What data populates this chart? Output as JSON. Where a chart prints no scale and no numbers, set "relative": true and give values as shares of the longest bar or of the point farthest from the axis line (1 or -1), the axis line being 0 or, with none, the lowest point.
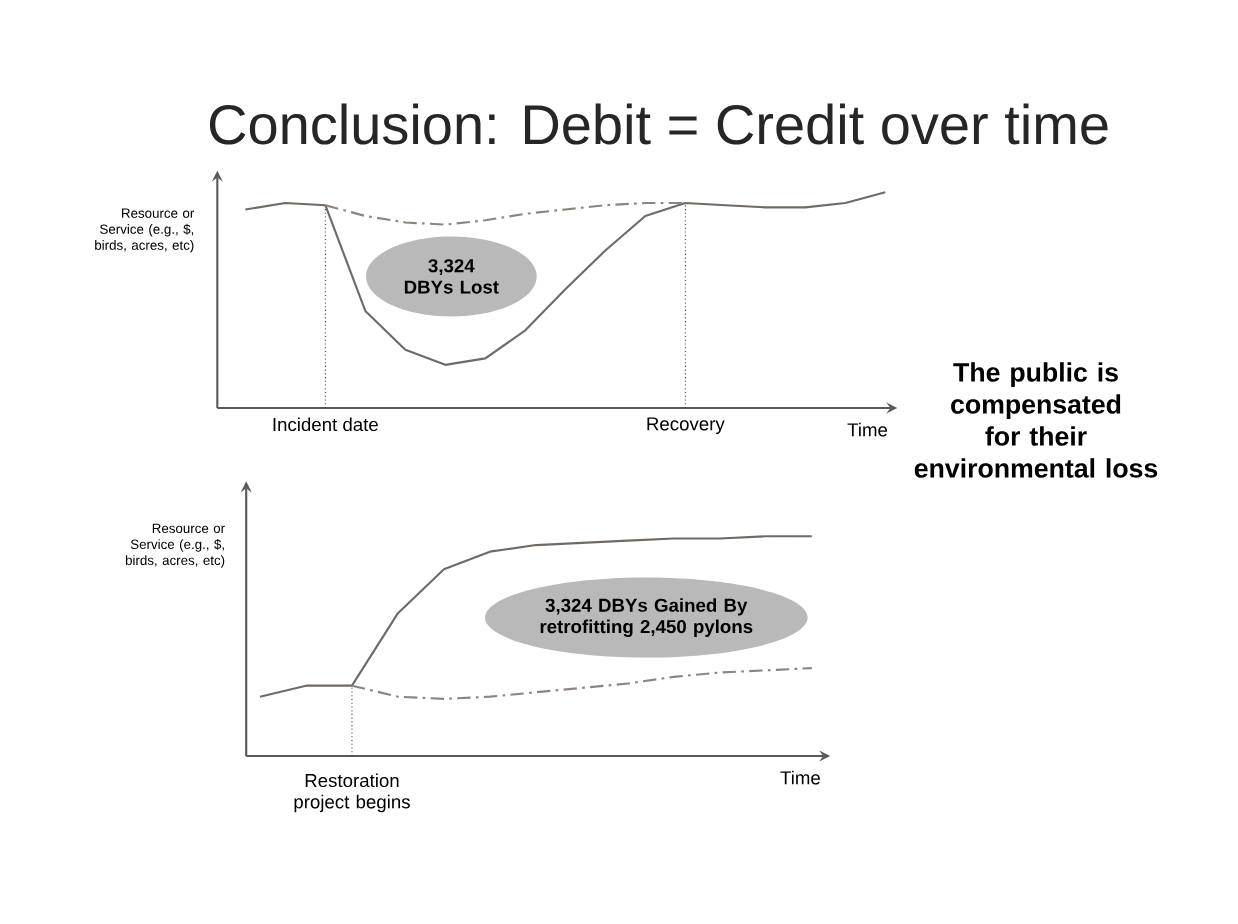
{
  "chart_data": [
    {
      "type": "line",
      "title": "Conclusion: Debit = Credit over time",
      "xlabel": "Time",
      "ylabel": "Resource or Service (e.g., $, birds, acres, etc)",
      "relative": true,
      "categories": [
        null,
        null,
        "Incident date",
        null,
        null,
        null,
        null,
        null,
        null,
        null,
        null,
        "Recovery",
        null,
        null,
        null,
        null,
        null
      ],
      "series": [
        {
          "color": "#6f6a66",
          "line_style": "solid",
          "values": [
            0.92,
            0.95,
            0.94,
            0.45,
            0.27,
            0.2,
            0.23,
            0.36,
            0.55,
            0.73,
            0.89,
            0.95,
            0.94,
            0.93,
            0.93,
            0.95,
            1.0
          ]
        },
        {
          "color": "#8a8580",
          "line_style": "dashed",
          "values": [
            null,
            null,
            0.94,
            0.89,
            0.86,
            0.85,
            0.87,
            0.9,
            0.92,
            0.94,
            0.95,
            0.95,
            null,
            null,
            null,
            null,
            null
          ]
        }
      ],
      "annotations": [
        "3,324 DBYs Lost"
      ]
    },
    {
      "type": "line",
      "xlabel": "Time",
      "ylabel": "Resource or Service (e.g., $, birds, acres, etc)",
      "relative": true,
      "categories": [
        null,
        null,
        null,
        null,
        null,
        null,
        null,
        null,
        null,
        null,
        null,
        null,
        null
      ],
      "series": [
        {
          "color": "#6f6a66",
          "line_style": "solid",
          "values": [
            0.27,
            0.32,
            0.32,
            0.65,
            0.85,
            0.93,
            0.96,
            0.97,
            0.98,
            0.99,
            0.99,
            1.0,
            1.0
          ]
        },
        {
          "color": "#8a8580",
          "line_style": "dashed",
          "values": [
            null,
            null,
            0.32,
            0.27,
            0.26,
            0.27,
            0.29,
            0.31,
            0.33,
            0.36,
            0.38,
            0.39,
            0.4
          ]
        }
      ],
      "annotations": [
        "3,324 DBYs Gained By retrofitting 2,450 pylons",
        "Restoration project begins"
      ]
    },
    {
      "type": "other",
      "annotations": [
        "The public is compensated for their environmental loss"
      ]
    }
  ]
}
